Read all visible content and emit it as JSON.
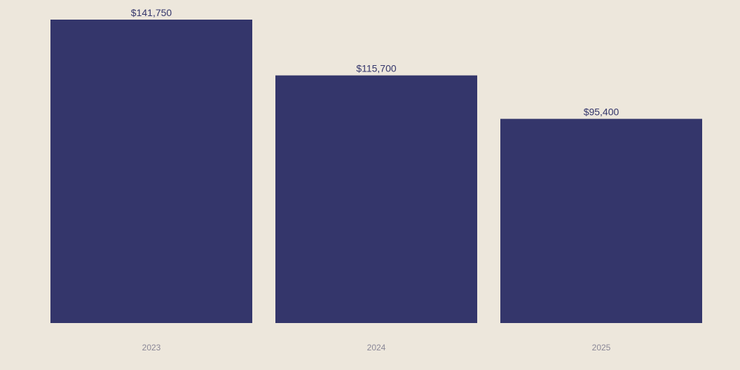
{
  "colors": {
    "background": "#ede7dc",
    "bar": "#34366b",
    "value_label": "#34366b",
    "tick_label": "#8a8797"
  },
  "chart_data": {
    "type": "bar",
    "categories": [
      "2023",
      "2024",
      "2025"
    ],
    "values": [
      141750,
      115700,
      95400
    ],
    "value_labels": [
      "$141,750",
      "$115,700",
      "$95,400"
    ],
    "title": "",
    "xlabel": "",
    "ylabel": "",
    "ylim": [
      0,
      141750
    ],
    "grid": false,
    "legend": "none"
  }
}
